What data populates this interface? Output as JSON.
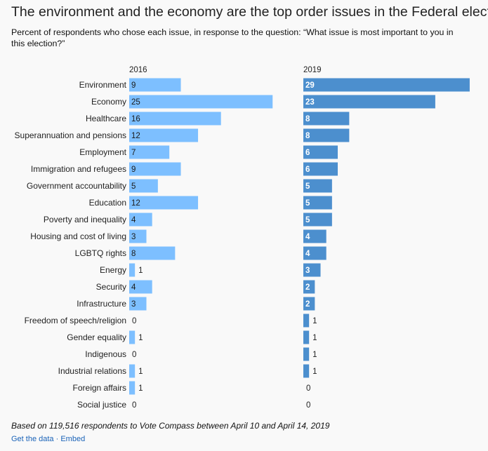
{
  "title": "The environment and the economy are the top order issues in the Federal election",
  "subtitle": "Percent of respondents who chose each issue, in response to the question: “What issue is most important to you in this election?”",
  "footnote": "Based on 119,516 respondents to Vote Compass between April 10 and April 14, 2019",
  "links": {
    "data": "Get the data",
    "separator": "·",
    "embed": "Embed"
  },
  "colors": {
    "series_2016": "#7dbfff",
    "series_2019": "#4c8fce",
    "label_inside": "#1b1b1b",
    "label_inside_2019": "#ffffff"
  },
  "chart_data": {
    "type": "bar",
    "orientation": "horizontal",
    "categories": [
      "Environment",
      "Economy",
      "Healthcare",
      "Superannuation and pensions",
      "Employment",
      "Immigration and refugees",
      "Government accountability",
      "Education",
      "Poverty and inequality",
      "Housing and cost of living",
      "LGBTQ rights",
      "Energy",
      "Security",
      "Infrastructure",
      "Freedom of speech/religion",
      "Gender equality",
      "Indigenous",
      "Industrial relations",
      "Foreign affairs",
      "Social justice"
    ],
    "series": [
      {
        "name": "2016",
        "values": [
          9,
          25,
          16,
          12,
          7,
          9,
          5,
          12,
          4,
          3,
          8,
          1,
          4,
          3,
          0,
          1,
          0,
          1,
          1,
          0
        ]
      },
      {
        "name": "2019",
        "values": [
          29,
          23,
          8,
          8,
          6,
          6,
          5,
          5,
          5,
          4,
          4,
          3,
          2,
          2,
          1,
          1,
          1,
          1,
          0,
          0
        ]
      }
    ],
    "xlim": [
      0,
      29
    ],
    "units": "percent"
  }
}
